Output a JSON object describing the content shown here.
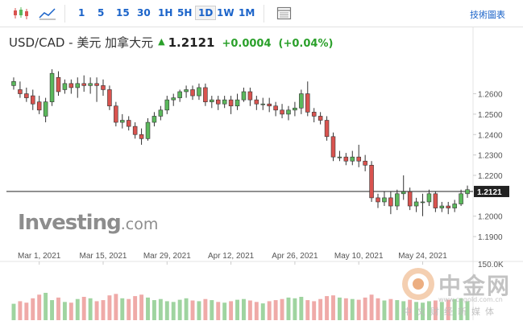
{
  "toolbar": {
    "chart_types": [
      "candlestick-icon",
      "area-chart-icon"
    ],
    "periods": [
      "1",
      "5",
      "15",
      "30",
      "1H",
      "5H",
      "1D",
      "1W",
      "1M"
    ],
    "active_period": "1D",
    "calendar_icon": "calendar-icon",
    "technical_link": "技術圖表"
  },
  "header": {
    "pair": "USD/CAD - 美元 加拿大元",
    "price": "1.2121",
    "change": "+0.0004",
    "change_pct": "(+0.04%)"
  },
  "branding": {
    "logo_text": "Investing",
    "logo_domain": ".com"
  },
  "watermark": {
    "title": "中金网",
    "url": "www.cngold.com.cn",
    "slogan": "中文财经新媒体"
  },
  "colors": {
    "up": "#5bb85c",
    "down": "#d9534f",
    "volume_up": "#9fd4a0",
    "volume_down": "#efaaa8"
  },
  "chart_data": {
    "type": "candlestick",
    "x_tick_labels": [
      "Mar 1, 2021",
      "Mar 15, 2021",
      "Mar 29, 2021",
      "Apr 12, 2021",
      "Apr 26, 2021",
      "May 10, 2021",
      "May 24, 2021"
    ],
    "y_tick_labels": [
      "1.2600",
      "1.2500",
      "1.2400",
      "1.2300",
      "1.2200",
      "1.2121",
      "1.2000",
      "1.1900"
    ],
    "y_ticks": [
      1.26,
      1.25,
      1.24,
      1.23,
      1.22,
      1.2,
      1.19
    ],
    "ylim": [
      1.1857,
      1.2744
    ],
    "last_price": 1.2121,
    "last_price_label": "1.2121",
    "volume_label": "150.0K",
    "volume_max_k": 150,
    "candles": [
      [
        1.264,
        1.266,
        1.262,
        1.268
      ],
      [
        1.262,
        1.26,
        1.258,
        1.266
      ],
      [
        1.26,
        1.258,
        1.256,
        1.263
      ],
      [
        1.259,
        1.255,
        1.252,
        1.262
      ],
      [
        1.256,
        1.252,
        1.25,
        1.259
      ],
      [
        1.249,
        1.256,
        1.246,
        1.258
      ],
      [
        1.256,
        1.27,
        1.254,
        1.272
      ],
      [
        1.268,
        1.261,
        1.259,
        1.271
      ],
      [
        1.262,
        1.265,
        1.26,
        1.267
      ],
      [
        1.265,
        1.263,
        1.26,
        1.267
      ],
      [
        1.263,
        1.265,
        1.258,
        1.268
      ],
      [
        1.265,
        1.264,
        1.261,
        1.269
      ],
      [
        1.264,
        1.265,
        1.26,
        1.268
      ],
      [
        1.265,
        1.264,
        1.256,
        1.268
      ],
      [
        1.264,
        1.262,
        1.259,
        1.267
      ],
      [
        1.262,
        1.254,
        1.252,
        1.264
      ],
      [
        1.254,
        1.246,
        1.244,
        1.256
      ],
      [
        1.246,
        1.247,
        1.243,
        1.25
      ],
      [
        1.247,
        1.244,
        1.242,
        1.249
      ],
      [
        1.244,
        1.24,
        1.238,
        1.246
      ],
      [
        1.24,
        1.238,
        1.235,
        1.243
      ],
      [
        1.238,
        1.246,
        1.237,
        1.248
      ],
      [
        1.246,
        1.249,
        1.244,
        1.251
      ],
      [
        1.249,
        1.252,
        1.247,
        1.254
      ],
      [
        1.252,
        1.257,
        1.25,
        1.259
      ],
      [
        1.257,
        1.258,
        1.254,
        1.26
      ],
      [
        1.258,
        1.261,
        1.256,
        1.262
      ],
      [
        1.261,
        1.262,
        1.258,
        1.264
      ],
      [
        1.262,
        1.259,
        1.257,
        1.264
      ],
      [
        1.259,
        1.263,
        1.257,
        1.265
      ],
      [
        1.263,
        1.256,
        1.254,
        1.265
      ],
      [
        1.256,
        1.257,
        1.253,
        1.259
      ],
      [
        1.257,
        1.255,
        1.252,
        1.259
      ],
      [
        1.255,
        1.257,
        1.253,
        1.259
      ],
      [
        1.257,
        1.254,
        1.25,
        1.259
      ],
      [
        1.254,
        1.257,
        1.252,
        1.26
      ],
      [
        1.257,
        1.261,
        1.256,
        1.263
      ],
      [
        1.261,
        1.257,
        1.254,
        1.263
      ],
      [
        1.257,
        1.255,
        1.252,
        1.259
      ],
      [
        1.255,
        1.255,
        1.252,
        1.258
      ],
      [
        1.255,
        1.254,
        1.251,
        1.258
      ],
      [
        1.254,
        1.252,
        1.249,
        1.256
      ],
      [
        1.252,
        1.25,
        1.248,
        1.255
      ],
      [
        1.25,
        1.252,
        1.247,
        1.254
      ],
      [
        1.252,
        1.253,
        1.249,
        1.256
      ],
      [
        1.253,
        1.26,
        1.25,
        1.262
      ],
      [
        1.26,
        1.251,
        1.249,
        1.266
      ],
      [
        1.251,
        1.249,
        1.246,
        1.253
      ],
      [
        1.249,
        1.247,
        1.245,
        1.251
      ],
      [
        1.247,
        1.239,
        1.237,
        1.249
      ],
      [
        1.239,
        1.229,
        1.227,
        1.241
      ],
      [
        1.229,
        1.229,
        1.227,
        1.232
      ],
      [
        1.229,
        1.227,
        1.225,
        1.231
      ],
      [
        1.227,
        1.229,
        1.225,
        1.232
      ],
      [
        1.229,
        1.227,
        1.224,
        1.235
      ],
      [
        1.227,
        1.225,
        1.222,
        1.23
      ],
      [
        1.225,
        1.209,
        1.207,
        1.227
      ],
      [
        1.209,
        1.207,
        1.204,
        1.211
      ],
      [
        1.207,
        1.209,
        1.205,
        1.212
      ],
      [
        1.209,
        1.205,
        1.201,
        1.212
      ],
      [
        1.205,
        1.211,
        1.203,
        1.213
      ],
      [
        1.211,
        1.212,
        1.208,
        1.22
      ],
      [
        1.212,
        1.205,
        1.203,
        1.214
      ],
      [
        1.205,
        1.207,
        1.202,
        1.209
      ],
      [
        1.207,
        1.207,
        1.2,
        1.211
      ],
      [
        1.207,
        1.211,
        1.205,
        1.213
      ],
      [
        1.211,
        1.204,
        1.202,
        1.212
      ],
      [
        1.204,
        1.205,
        1.202,
        1.207
      ],
      [
        1.205,
        1.204,
        1.201,
        1.207
      ],
      [
        1.204,
        1.206,
        1.202,
        1.208
      ],
      [
        1.206,
        1.211,
        1.205,
        1.213
      ],
      [
        1.211,
        1.213,
        1.209,
        1.215
      ]
    ],
    "volumes_k": [
      45,
      52,
      48,
      60,
      70,
      75,
      55,
      62,
      50,
      48,
      58,
      64,
      60,
      52,
      55,
      68,
      72,
      60,
      58,
      66,
      70,
      62,
      55,
      58,
      52,
      50,
      56,
      60,
      54,
      52,
      58,
      55,
      50,
      48,
      52,
      56,
      58,
      54,
      50,
      46,
      52,
      55,
      58,
      62,
      60,
      64,
      55,
      52,
      58,
      66,
      68,
      62,
      60,
      58,
      56,
      62,
      70,
      60,
      54,
      58,
      55,
      52,
      56,
      50,
      48,
      52,
      54,
      50,
      56,
      58,
      60,
      52
    ]
  }
}
